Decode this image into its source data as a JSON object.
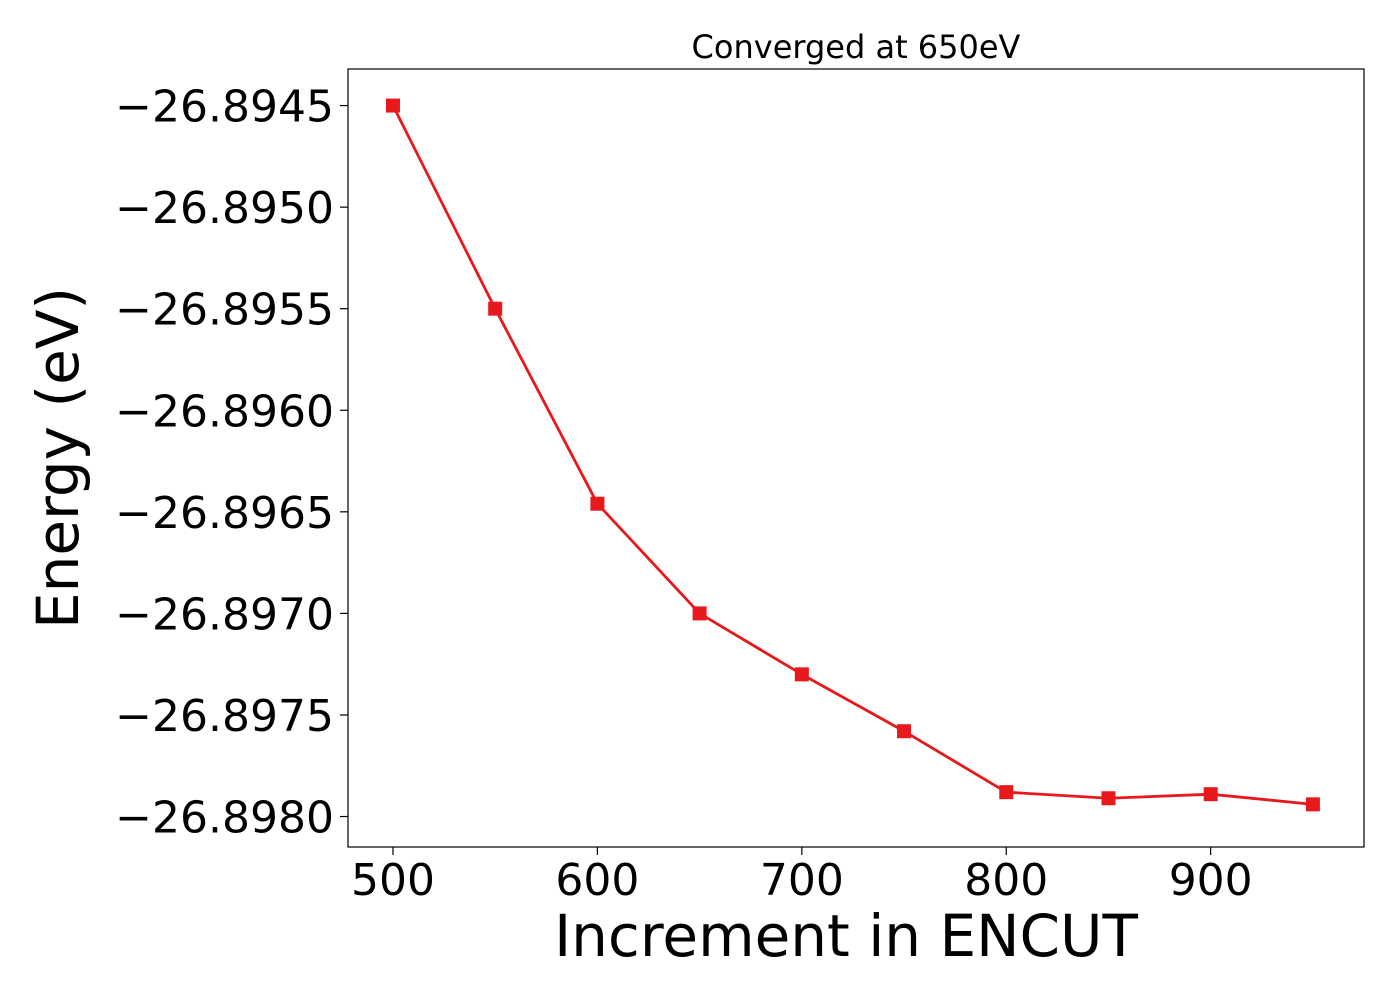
{
  "chart_data": {
    "type": "line",
    "title": "Converged at 650eV",
    "xlabel": "Increment in ENCUT",
    "ylabel": "Energy (eV)",
    "xlim": [
      478,
      975
    ],
    "ylim": [
      -26.89815,
      -26.89432
    ],
    "x_ticks": [
      500,
      600,
      700,
      800,
      900
    ],
    "x_tick_labels": [
      "500",
      "600",
      "700",
      "800",
      "900"
    ],
    "y_ticks": [
      -26.8945,
      -26.895,
      -26.8955,
      -26.896,
      -26.8965,
      -26.897,
      -26.8975,
      -26.898
    ],
    "y_tick_labels": [
      "−26.8945",
      "−26.8950",
      "−26.8955",
      "−26.8960",
      "−26.8965",
      "−26.8970",
      "−26.8975",
      "−26.8980"
    ],
    "grid": false,
    "series": [
      {
        "color": "#e8191c",
        "marker": "square",
        "x": [
          500,
          550,
          600,
          650,
          700,
          750,
          800,
          850,
          900,
          950
        ],
        "y": [
          -26.8945,
          -26.8955,
          -26.89646,
          -26.897,
          -26.8973,
          -26.89758,
          -26.89788,
          -26.89791,
          -26.89789,
          -26.89794
        ]
      }
    ]
  }
}
